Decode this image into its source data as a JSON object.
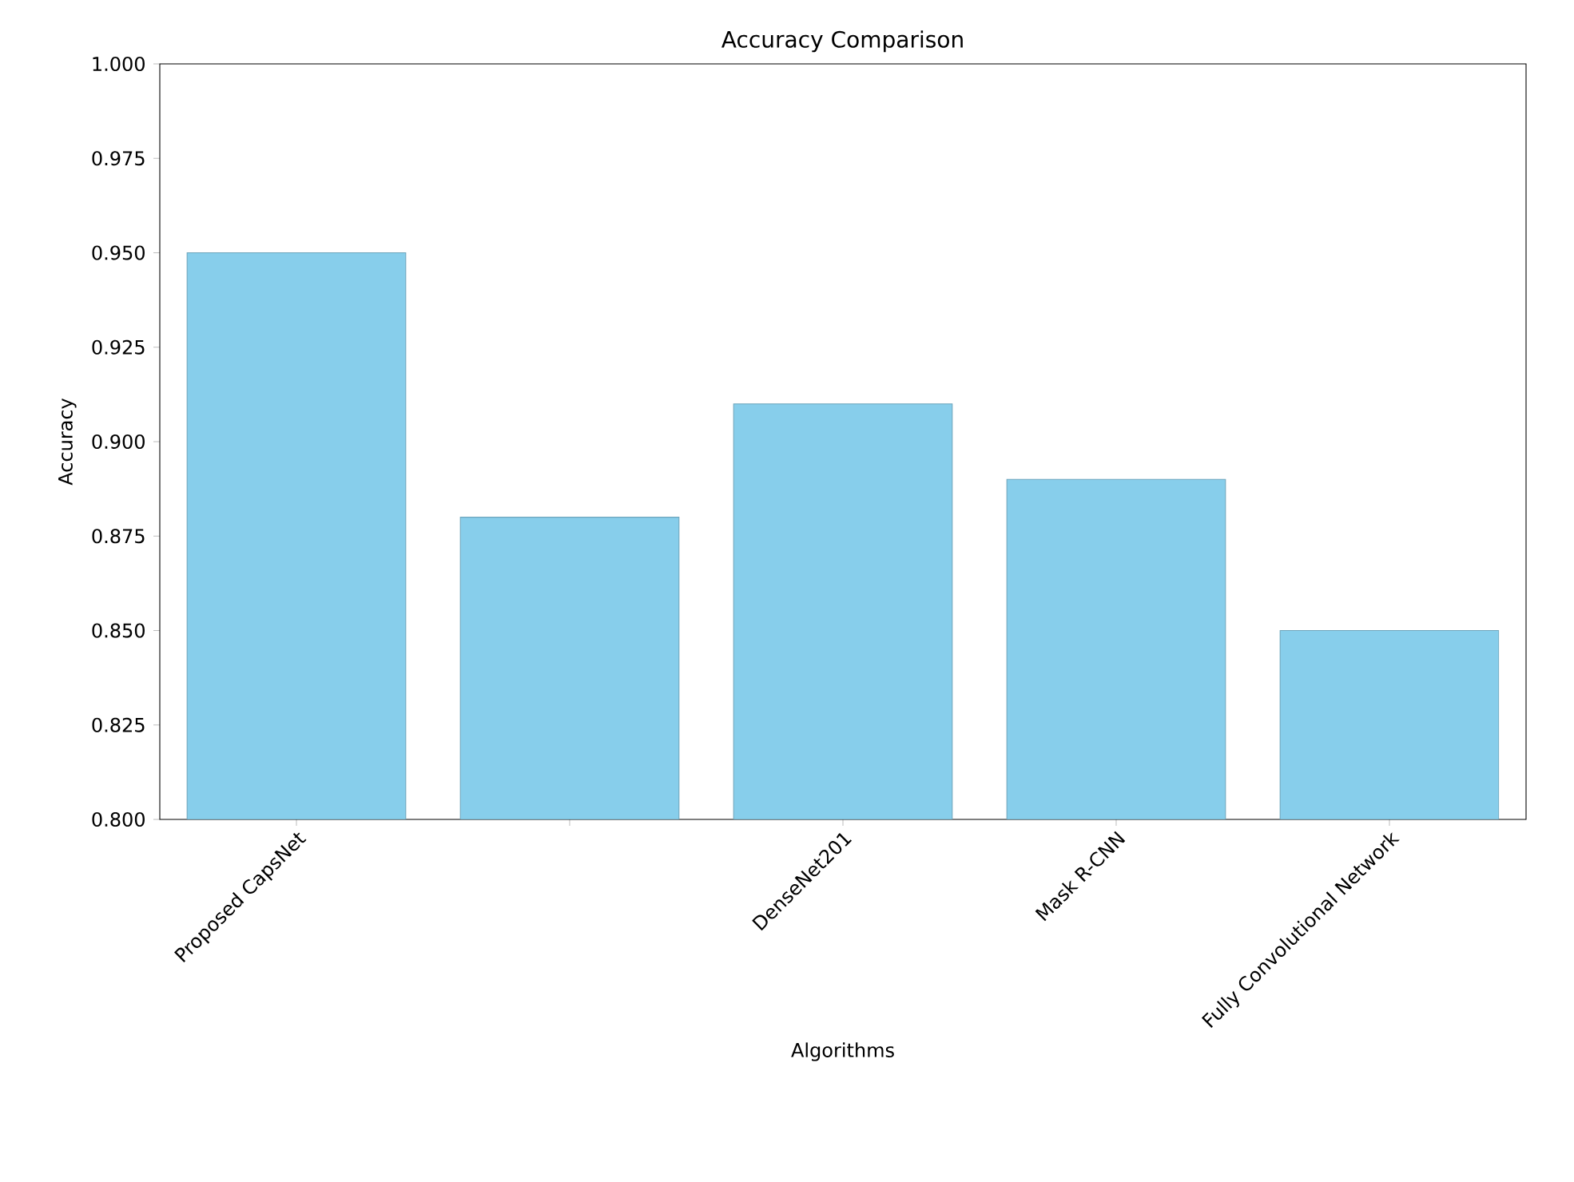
{
  "chart_data": {
    "type": "bar",
    "title": "Accuracy Comparison",
    "xlabel": "Algorithms",
    "ylabel": "Accuracy",
    "categories": [
      "Proposed CapsNet",
      null,
      "DenseNet201",
      "Mask R-CNN",
      "Fully Convolutional Network"
    ],
    "values": [
      0.95,
      0.88,
      0.91,
      0.89,
      0.85
    ],
    "color": "#87ceeb",
    "ylim": [
      0.8,
      1.0
    ],
    "yticks": [
      {
        "value": 0.8,
        "label": "0.800"
      },
      {
        "value": 0.825,
        "label": "0.825"
      },
      {
        "value": 0.85,
        "label": "0.850"
      },
      {
        "value": 0.875,
        "label": "0.875"
      },
      {
        "value": 0.9,
        "label": "0.900"
      },
      {
        "value": 0.925,
        "label": "0.925"
      },
      {
        "value": 0.95,
        "label": "0.950"
      },
      {
        "value": 0.975,
        "label": "0.975"
      },
      {
        "value": 1.0,
        "label": "1.000"
      }
    ],
    "grid": false
  }
}
